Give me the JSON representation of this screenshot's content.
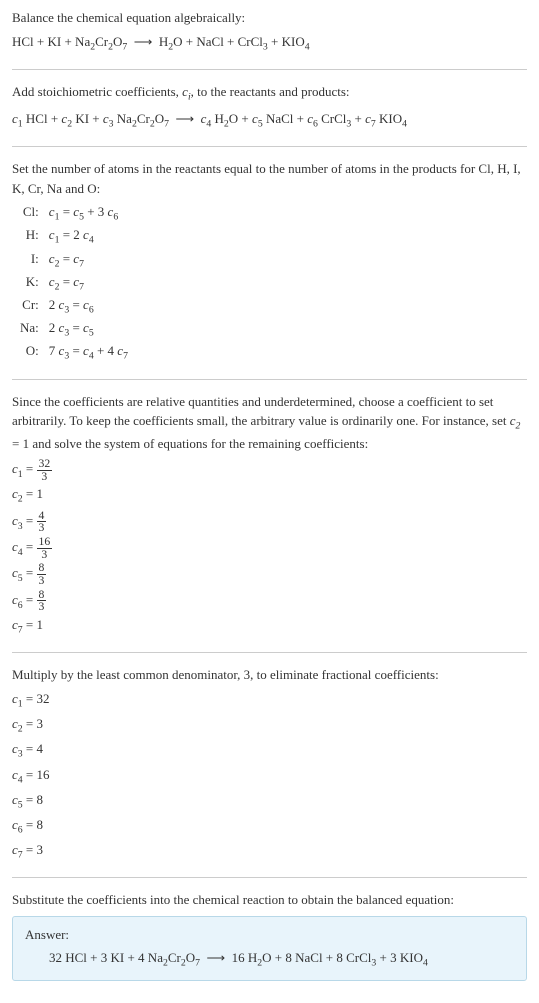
{
  "colors": {
    "text": "#333333",
    "rule": "#cccccc",
    "answer_bg": "#e8f4fb",
    "answer_border": "#b8d8e8"
  },
  "fontsize_body": 13,
  "intro": {
    "line1": "Balance the chemical equation algebraically:",
    "equation_plain": "HCl + KI + Na2Cr2O7 → H2O + NaCl + CrCl3 + KIO4"
  },
  "stoich": {
    "line1_a": "Add stoichiometric coefficients, ",
    "line1_b": ", to the reactants and products:",
    "ci": "c_i",
    "equation_plain": "c1 HCl + c2 KI + c3 Na2Cr2O7 → c4 H2O + c5 NaCl + c6 CrCl3 + c7 KIO4"
  },
  "atoms": {
    "para": "Set the number of atoms in the reactants equal to the number of atoms in the products for Cl, H, I, K, Cr, Na and O:",
    "rows": [
      {
        "label": "Cl:",
        "lhs": "c1",
        "rhs": "c5 + 3 c6"
      },
      {
        "label": "H:",
        "lhs": "c1",
        "rhs": "2 c4"
      },
      {
        "label": "I:",
        "lhs": "c2",
        "rhs": "c7"
      },
      {
        "label": "K:",
        "lhs": "c2",
        "rhs": "c7"
      },
      {
        "label": "Cr:",
        "lhs": "2 c3",
        "rhs": "c6"
      },
      {
        "label": "Na:",
        "lhs": "2 c3",
        "rhs": "c5"
      },
      {
        "label": "O:",
        "lhs": "7 c3",
        "rhs": "c4 + 4 c7"
      }
    ]
  },
  "choose": {
    "para_a": "Since the coefficients are relative quantities and underdetermined, choose a coefficient to set arbitrarily. To keep the coefficients small, the arbitrary value is ordinarily one. For instance, set ",
    "para_b": " = 1 and solve the system of equations for the remaining coefficients:",
    "set_var": "c2",
    "coeffs": [
      {
        "name": "c1",
        "num": "32",
        "den": "3"
      },
      {
        "name": "c2",
        "val": "1"
      },
      {
        "name": "c3",
        "num": "4",
        "den": "3"
      },
      {
        "name": "c4",
        "num": "16",
        "den": "3"
      },
      {
        "name": "c5",
        "num": "8",
        "den": "3"
      },
      {
        "name": "c6",
        "num": "8",
        "den": "3"
      },
      {
        "name": "c7",
        "val": "1"
      }
    ]
  },
  "multiply": {
    "para": "Multiply by the least common denominator, 3, to eliminate fractional coefficients:",
    "coeffs": [
      {
        "name": "c1",
        "val": "32"
      },
      {
        "name": "c2",
        "val": "3"
      },
      {
        "name": "c3",
        "val": "4"
      },
      {
        "name": "c4",
        "val": "16"
      },
      {
        "name": "c5",
        "val": "8"
      },
      {
        "name": "c6",
        "val": "8"
      },
      {
        "name": "c7",
        "val": "3"
      }
    ]
  },
  "substitute": {
    "para": "Substitute the coefficients into the chemical reaction to obtain the balanced equation:"
  },
  "answer": {
    "label": "Answer:",
    "equation_plain": "32 HCl + 3 KI + 4 Na2Cr2O7 → 16 H2O + 8 NaCl + 8 CrCl3 + 3 KIO4"
  }
}
